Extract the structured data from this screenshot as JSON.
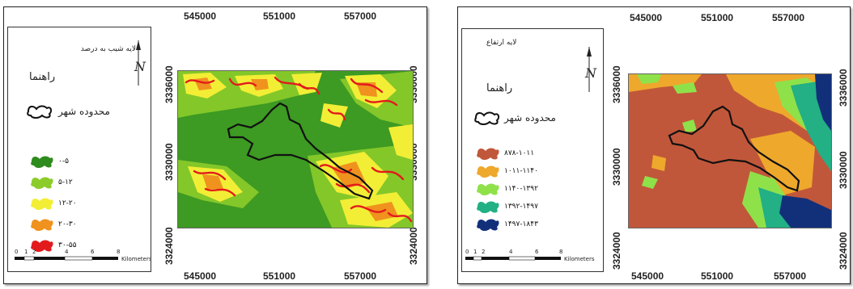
{
  "panels": [
    {
      "legend_title": "لایه شیب به درصد",
      "guide_label": "راهنما",
      "boundary_label": "محدوده شهر",
      "classes": [
        {
          "label": "۰-۵",
          "color": "#2e8b1e"
        },
        {
          "label": "۵-۱۲",
          "color": "#8ccc2a"
        },
        {
          "label": "۱۲-۲۰",
          "color": "#f2ee35"
        },
        {
          "label": "۲۰-۳۰",
          "color": "#f0921e"
        },
        {
          "label": "۳۰-۵۵",
          "color": "#e31a1c"
        }
      ],
      "x_ticks": [
        "545000",
        "551000",
        "557000"
      ],
      "y_ticks": [
        "3336000",
        "3330000",
        "3324000"
      ],
      "scale_ticks": [
        "0",
        "1",
        "2",
        "4",
        "6",
        "8"
      ],
      "scale_unit": "Kilometers"
    },
    {
      "legend_title": "لایه ارتفاع",
      "guide_label": "راهنما",
      "boundary_label": "محدوده شهر",
      "classes": [
        {
          "label": "۸۷۸-۱۰۱۱",
          "color": "#c1573a"
        },
        {
          "label": "۱۰۱۱-۱۱۴۰",
          "color": "#eea82c"
        },
        {
          "label": "۱۱۴۰-۱۳۹۲",
          "color": "#8fe14a"
        },
        {
          "label": "۱۳۹۲-۱۴۹۷",
          "color": "#22b084"
        },
        {
          "label": "۱۴۹۷-۱۸۴۳",
          "color": "#12307a"
        }
      ],
      "x_ticks": [
        "545000",
        "551000",
        "557000"
      ],
      "y_ticks": [
        "3336000",
        "3330000",
        "3324000"
      ],
      "scale_ticks": [
        "0",
        "1",
        "2",
        "4",
        "6",
        "8"
      ],
      "scale_unit": "Kilometers"
    }
  ],
  "north_symbol": "N"
}
